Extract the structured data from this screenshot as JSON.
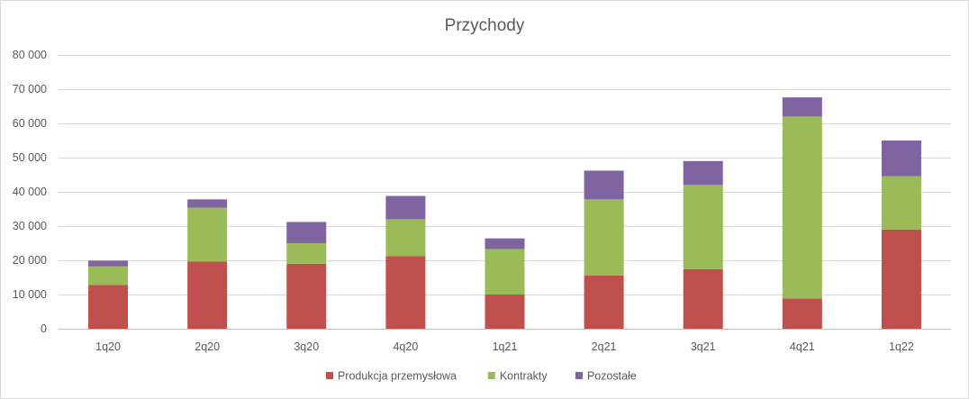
{
  "chart_data": {
    "type": "bar",
    "stacked": true,
    "title": "Przychody",
    "xlabel": "",
    "ylabel": "",
    "ylim": [
      0,
      80000
    ],
    "yticks": [
      0,
      10000,
      20000,
      30000,
      40000,
      50000,
      60000,
      70000,
      80000
    ],
    "ytick_labels": [
      "0",
      "10 000",
      "20 000",
      "30 000",
      "40 000",
      "50 000",
      "60 000",
      "70 000",
      "80 000"
    ],
    "grid": true,
    "legend_position": "bottom",
    "categories": [
      "1q20",
      "2q20",
      "3q20",
      "4q20",
      "1q21",
      "2q21",
      "3q21",
      "4q21",
      "1q22"
    ],
    "series": [
      {
        "name": "Produkcja przemysłowa",
        "color": "#c0504d",
        "values": [
          12800,
          19600,
          19000,
          21200,
          10000,
          15600,
          17400,
          8800,
          29000
        ]
      },
      {
        "name": "Kontrakty",
        "color": "#9bbb59",
        "values": [
          5400,
          15800,
          6000,
          10800,
          13300,
          22200,
          24600,
          53200,
          15600
        ]
      },
      {
        "name": "Pozostałe",
        "color": "#8064a2",
        "values": [
          1700,
          2400,
          6200,
          6800,
          3100,
          8400,
          7000,
          5600,
          10400
        ]
      }
    ]
  }
}
